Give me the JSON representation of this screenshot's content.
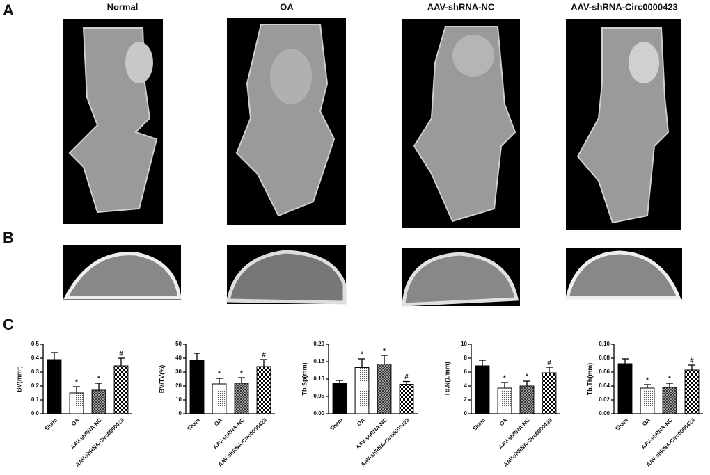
{
  "panel_labels": [
    "A",
    "B",
    "C"
  ],
  "column_titles": [
    "Normal",
    "OA",
    "AAV-shRNA-NC",
    "AAV-shRNA-Circ0000423"
  ],
  "chart_data": [
    {
      "type": "bar",
      "y_label": "BV(mm³)",
      "categories": [
        "Sham",
        "OA",
        "AAV-shRNA-NC",
        "AAV-shRNA-Circ0000423"
      ],
      "values": [
        0.39,
        0.15,
        0.17,
        0.345
      ],
      "errors": [
        0.05,
        0.045,
        0.05,
        0.055
      ],
      "annotations": [
        null,
        "*",
        "*",
        "#"
      ],
      "ylim": [
        0,
        0.5
      ],
      "yticks": [
        {
          "value": 0,
          "label": "0.0"
        },
        0.1,
        0.2,
        0.3,
        0.4,
        0.5
      ]
    },
    {
      "type": "bar",
      "y_label": "BV/TV(%)",
      "categories": [
        "Sham",
        "OA",
        "AAV-shRNA-NC",
        "AAV-shRNA-Circ0000423"
      ],
      "values": [
        38.5,
        21.5,
        22,
        34
      ],
      "errors": [
        5,
        4,
        4,
        5
      ],
      "annotations": [
        null,
        "*",
        "*",
        "#"
      ],
      "ylim": [
        0,
        50
      ],
      "yticks": [
        0,
        10,
        20,
        30,
        40,
        50
      ]
    },
    {
      "type": "bar",
      "y_label": "Tb.Sp(mm)",
      "categories": [
        "Sham",
        "OA",
        "AAV-shRNA-NC",
        "AAV-shRNA-Circ0000423"
      ],
      "values": [
        0.088,
        0.133,
        0.143,
        0.085
      ],
      "errors": [
        0.008,
        0.025,
        0.025,
        0.008
      ],
      "annotations": [
        null,
        "*",
        "*",
        "#"
      ],
      "ylim": [
        0,
        0.2
      ],
      "yticks": [
        {
          "value": 0,
          "label": "0.00"
        },
        {
          "value": 0.05,
          "label": "0.05"
        },
        {
          "value": 0.1,
          "label": "0.10"
        },
        {
          "value": 0.15,
          "label": "0.15"
        },
        {
          "value": 0.2,
          "label": "0.20"
        }
      ]
    },
    {
      "type": "bar",
      "y_label": "Tb.N(1/mm)",
      "categories": [
        "Sham",
        "OA",
        "AAV-shRNA-NC",
        "AAV-shRNA-Circ0000423"
      ],
      "values": [
        6.9,
        3.7,
        4.0,
        5.9
      ],
      "errors": [
        0.8,
        0.8,
        0.7,
        0.8
      ],
      "annotations": [
        null,
        "*",
        "*",
        "#"
      ],
      "ylim": [
        0,
        10
      ],
      "yticks": [
        0,
        2,
        4,
        6,
        8,
        10
      ]
    },
    {
      "type": "bar",
      "y_label": "Tb.Th(mm)",
      "categories": [
        "Sham",
        "OA",
        "AAV-shRNA-NC",
        "AAV-shRNA-Circ0000423"
      ],
      "values": [
        0.072,
        0.037,
        0.038,
        0.063
      ],
      "errors": [
        0.007,
        0.005,
        0.006,
        0.007
      ],
      "annotations": [
        null,
        "*",
        "*",
        "#"
      ],
      "ylim": [
        0,
        0.1
      ],
      "yticks": [
        {
          "value": 0,
          "label": "0.00"
        },
        {
          "value": 0.02,
          "label": "0.02"
        },
        {
          "value": 0.04,
          "label": "0.04"
        },
        {
          "value": 0.06,
          "label": "0.06"
        },
        {
          "value": 0.08,
          "label": "0.08"
        },
        {
          "value": 0.1,
          "label": "0.10"
        }
      ]
    }
  ]
}
